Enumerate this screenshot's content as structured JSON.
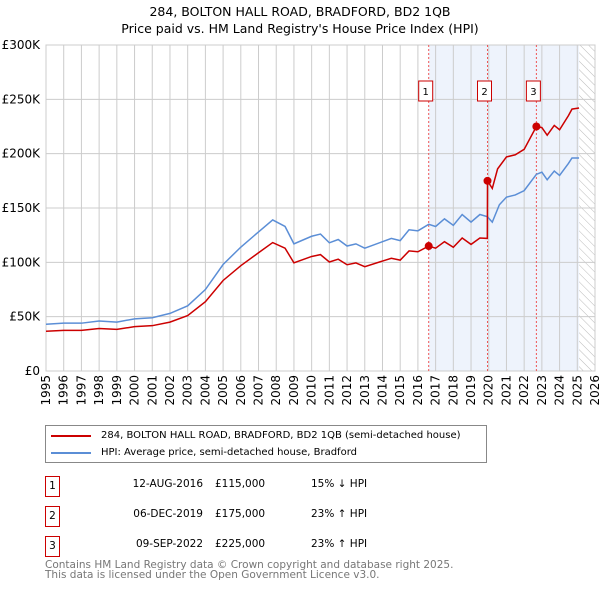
{
  "chart_data": {
    "type": "line",
    "title": "284, BOLTON HALL ROAD, BRADFORD, BD2 1QB",
    "subtitle": "Price paid vs. HM Land Registry's House Price Index (HPI)",
    "xlim": [
      1995,
      2026
    ],
    "ylim": [
      0,
      300000
    ],
    "y_ticks": [
      {
        "v": 0,
        "label": "£0"
      },
      {
        "v": 50000,
        "label": "£50K"
      },
      {
        "v": 100000,
        "label": "£100K"
      },
      {
        "v": 150000,
        "label": "£150K"
      },
      {
        "v": 200000,
        "label": "£200K"
      },
      {
        "v": 250000,
        "label": "£250K"
      },
      {
        "v": 300000,
        "label": "£300K"
      }
    ],
    "x_ticks": [
      "1995",
      "1996",
      "1997",
      "1998",
      "1999",
      "2000",
      "2001",
      "2002",
      "2003",
      "2004",
      "2005",
      "2006",
      "2007",
      "2008",
      "2009",
      "2010",
      "2011",
      "2012",
      "2013",
      "2014",
      "2015",
      "2016",
      "2017",
      "2018",
      "2019",
      "2020",
      "2021",
      "2022",
      "2023",
      "2024",
      "2025",
      "2026"
    ],
    "grid": true,
    "shaded_range": [
      2016.61,
      2025.1
    ],
    "hatched_range": [
      2025.1,
      2026
    ],
    "series": [
      {
        "name": "284, BOLTON HALL ROAD, BRADFORD, BD2 1QB (semi-detached house)",
        "color": "#cc0000",
        "x": [
          1995,
          1996,
          1997,
          1998,
          1999,
          2000,
          2001,
          2002,
          2003,
          2004,
          2005,
          2006,
          2007,
          2007.8,
          2008.5,
          2009,
          2010,
          2010.5,
          2011,
          2011.5,
          2012,
          2012.5,
          2013,
          2014,
          2014.5,
          2015,
          2015.5,
          2016,
          2016.61,
          2017,
          2017.5,
          2018,
          2018.5,
          2019,
          2019.5,
          2019.92,
          2019.93,
          2020.2,
          2020.5,
          2021,
          2021.5,
          2022,
          2022.69,
          2023,
          2023.3,
          2023.7,
          2024,
          2024.5,
          2024.7,
          2025.1
        ],
        "values": [
          36600,
          37400,
          37400,
          39100,
          38300,
          40800,
          41700,
          45000,
          51000,
          63800,
          83300,
          96900,
          108800,
          118200,
          113000,
          99500,
          105400,
          107100,
          100300,
          102900,
          97800,
          99500,
          96000,
          101200,
          103700,
          102000,
          110500,
          109700,
          115000,
          113000,
          119000,
          113900,
          122400,
          116500,
          122400,
          122000,
          175000,
          168000,
          186000,
          197000,
          199000,
          204000,
          225000,
          224000,
          217000,
          226000,
          222000,
          235000,
          241000,
          242000
        ]
      },
      {
        "name": "HPI: Average price, semi-detached house, Bradford",
        "color": "#5b8ed6",
        "x": [
          1995,
          1996,
          1997,
          1998,
          1999,
          2000,
          2001,
          2002,
          2003,
          2004,
          2005,
          2006,
          2007,
          2007.8,
          2008.5,
          2009,
          2010,
          2010.5,
          2011,
          2011.5,
          2012,
          2012.5,
          2013,
          2014,
          2014.5,
          2015,
          2015.5,
          2016,
          2016.61,
          2017,
          2017.5,
          2018,
          2018.5,
          2019,
          2019.5,
          2019.92,
          2020.2,
          2020.6,
          2021,
          2021.5,
          2022,
          2022.69,
          2023,
          2023.3,
          2023.7,
          2024,
          2024.5,
          2024.7,
          2025.1
        ],
        "values": [
          43000,
          44000,
          44000,
          46000,
          45000,
          48000,
          49000,
          53000,
          60000,
          75000,
          98000,
          114000,
          128000,
          139000,
          133000,
          117000,
          124000,
          126000,
          118000,
          121000,
          115000,
          117000,
          113000,
          119000,
          122000,
          120000,
          130000,
          129000,
          135000,
          133000,
          140000,
          134000,
          144000,
          137000,
          144000,
          142000,
          137000,
          153000,
          160000,
          162000,
          166000,
          181000,
          183000,
          176000,
          184000,
          180000,
          191000,
          196000,
          196000
        ]
      }
    ],
    "sales": [
      {
        "n": "1",
        "x": 2016.61,
        "price": 115000,
        "date": "12-AUG-2016",
        "price_label": "£115,000",
        "hpi": "15% ↓ HPI"
      },
      {
        "n": "2",
        "x": 2019.93,
        "price": 175000,
        "date": "06-DEC-2019",
        "price_label": "£175,000",
        "hpi": "23% ↑ HPI"
      },
      {
        "n": "3",
        "x": 2022.69,
        "price": 225000,
        "date": "09-SEP-2022",
        "price_label": "£225,000",
        "hpi": "23% ↑ HPI"
      }
    ]
  },
  "footer": {
    "line1": "Contains HM Land Registry data © Crown copyright and database right 2025.",
    "line2": "This data is licensed under the Open Government Licence v3.0."
  }
}
